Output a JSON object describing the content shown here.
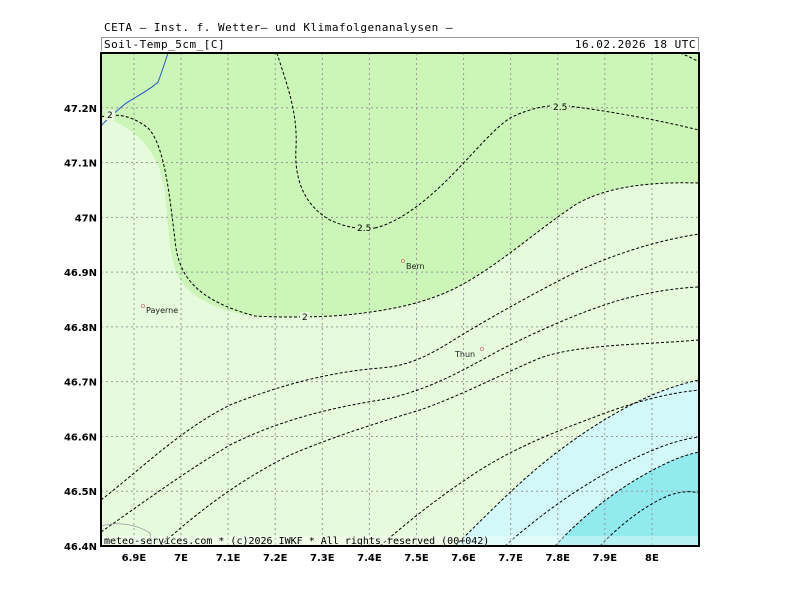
{
  "header": {
    "title": "CETA — Inst. f. Wetter— und Klimafolgenanalysen —",
    "field": "Soil-Temp_5cm_[C]",
    "valid_time": "16.02.2026  18 UTC"
  },
  "map": {
    "lon_range": [
      6.83,
      8.1
    ],
    "lat_range": [
      46.4,
      47.3
    ],
    "lat_ticks": [
      "47.2N",
      "47.1N",
      "47N",
      "46.9N",
      "46.8N",
      "46.7N",
      "46.6N",
      "46.5N",
      "46.4N"
    ],
    "lon_ticks": [
      "6.9E",
      "7E",
      "7.1E",
      "7.2E",
      "7.3E",
      "7.4E",
      "7.5E",
      "7.6E",
      "7.7E",
      "7.8E",
      "7.9E",
      "8E"
    ],
    "cities": [
      {
        "name": "Bern",
        "lon": 7.47,
        "lat": 46.92
      },
      {
        "name": "Payerne",
        "lon": 6.92,
        "lat": 46.84
      },
      {
        "name": "Thun",
        "lon": 7.64,
        "lat": 46.76
      }
    ],
    "contour_labels": [
      "2",
      "2.5",
      "2.5",
      "2"
    ],
    "colors": {
      "band_2_to_2_5": "#ccf5b8",
      "band_1_5_to_2": "#e6fadc",
      "band_1_to_1_5": "#d2f8f8",
      "band_0_5_to_1": "#90eaee",
      "lake": "#2255cc",
      "grid": "#999999"
    }
  },
  "footer": {
    "copyright": "meteo-services.com * (c)2026 IWKF * All rights reserved (00+042)"
  }
}
